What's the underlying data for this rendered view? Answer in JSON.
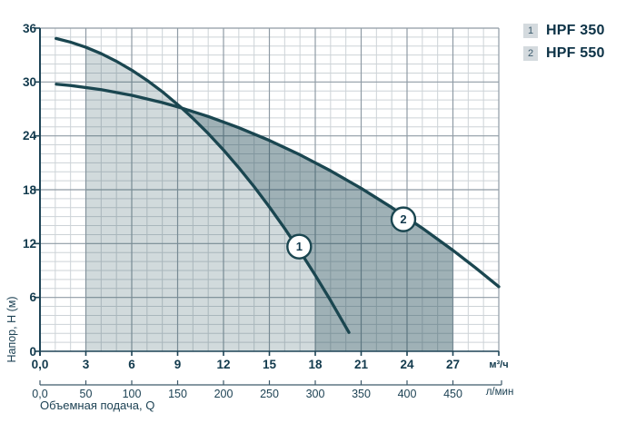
{
  "chart": {
    "y_axis": {
      "title": "Напор, Н (м)",
      "tick_values": [
        36,
        30,
        24,
        18,
        12,
        6,
        0
      ],
      "tick_labels": [
        "36",
        "30",
        "24",
        "18",
        "12",
        "6",
        "0"
      ],
      "min": 0,
      "max": 36
    },
    "x_axis_primary": {
      "unit": "м³/ч",
      "tick_values": [
        0,
        3,
        6,
        9,
        12,
        15,
        18,
        21,
        24,
        27
      ],
      "tick_labels": [
        "0,0",
        "3",
        "6",
        "9",
        "12",
        "15",
        "18",
        "21",
        "24",
        "27"
      ],
      "min": 0,
      "max": 30
    },
    "x_axis_secondary": {
      "unit": "л/мин",
      "tick_values": [
        0,
        3,
        6,
        9,
        12,
        15,
        18,
        21,
        24,
        27
      ],
      "tick_labels": [
        "0,0",
        "50",
        "100",
        "150",
        "200",
        "250",
        "300",
        "350",
        "400",
        "450"
      ],
      "title": "Объемная подача, Q"
    },
    "legend": {
      "items": [
        {
          "key": "1",
          "label": "HPF 350"
        },
        {
          "key": "2",
          "label": "HPF 550"
        }
      ]
    },
    "colors": {
      "curve": "#1a4650",
      "region_fill": "rgba(26,70,80,0.20)",
      "region_fill_dark": "rgba(26,70,80,0.42)",
      "grid_minor": "#cdd3d7",
      "grid_major": "#8f9ba5",
      "axis": "#1e4456",
      "ruler": "#3e5a6b",
      "text": "#123a4d",
      "marker_fill": "#ffffff"
    }
  },
  "chart_data": {
    "type": "line",
    "title": "",
    "xlabel": "Объемная подача, Q",
    "ylabel": "Напор, Н (м)",
    "x_unit": "м³/ч",
    "x_unit_secondary": "л/мин",
    "xlim": [
      0,
      30
    ],
    "ylim": [
      0,
      36
    ],
    "grid": "minor 1 м³/ч × 1 м, major 3 м³/ч × 6 м",
    "series": [
      {
        "name": "HPF 350",
        "curve_label": "1",
        "marker_at": [
          16.95,
          11.66
        ],
        "points": [
          [
            1.05,
            34.85
          ],
          [
            2,
            34.44
          ],
          [
            3,
            33.87
          ],
          [
            4,
            33.16
          ],
          [
            5,
            32.31
          ],
          [
            6,
            31.32
          ],
          [
            7,
            30.19
          ],
          [
            8,
            28.92
          ],
          [
            9.27,
            27.1
          ],
          [
            10,
            25.95
          ],
          [
            11,
            24.26
          ],
          [
            12,
            22.43
          ],
          [
            13,
            20.45
          ],
          [
            14,
            18.34
          ],
          [
            15,
            16.08
          ],
          [
            16,
            13.68
          ],
          [
            17,
            11.15
          ],
          [
            18,
            8.47
          ],
          [
            19,
            5.66
          ],
          [
            20.2,
            2.1
          ]
        ]
      },
      {
        "name": "HPF 550",
        "curve_label": "2",
        "marker_at": [
          23.76,
          14.7
        ],
        "points": [
          [
            1.07,
            29.76
          ],
          [
            2,
            29.61
          ],
          [
            4,
            29.15
          ],
          [
            6,
            28.52
          ],
          [
            8,
            27.71
          ],
          [
            9.27,
            27.1
          ],
          [
            11,
            26.16
          ],
          [
            13,
            24.91
          ],
          [
            15,
            23.49
          ],
          [
            17,
            21.89
          ],
          [
            19,
            20.11
          ],
          [
            21,
            18.16
          ],
          [
            23,
            16.02
          ],
          [
            25,
            13.72
          ],
          [
            27,
            11.25
          ],
          [
            28.5,
            9.27
          ],
          [
            30,
            7.2
          ]
        ]
      }
    ],
    "curves_intersection": [
      9.27,
      27.1
    ],
    "shaded_regions": [
      {
        "name": "HPF 350 operating range",
        "shade": "light",
        "x_from": 3,
        "x_to": 18,
        "polygon": [
          [
            3,
            0
          ],
          [
            3,
            33.87
          ],
          [
            4,
            33.16
          ],
          [
            5,
            32.31
          ],
          [
            6,
            31.32
          ],
          [
            7,
            30.19
          ],
          [
            8,
            28.92
          ],
          [
            9.27,
            27.1
          ],
          [
            10,
            25.95
          ],
          [
            11,
            24.26
          ],
          [
            12,
            22.43
          ],
          [
            13,
            20.45
          ],
          [
            14,
            18.34
          ],
          [
            15,
            16.08
          ],
          [
            16,
            13.68
          ],
          [
            17,
            11.15
          ],
          [
            18,
            8.47
          ],
          [
            18,
            0
          ]
        ]
      },
      {
        "name": "HPF 550 operating range",
        "shade": "dark",
        "x_from": 9.27,
        "x_to": 27,
        "polygon": [
          [
            9.27,
            27.1
          ],
          [
            11,
            26.16
          ],
          [
            13,
            24.91
          ],
          [
            15,
            23.49
          ],
          [
            17,
            21.89
          ],
          [
            19,
            20.11
          ],
          [
            21,
            18.16
          ],
          [
            23,
            16.02
          ],
          [
            25,
            13.72
          ],
          [
            27,
            11.25
          ],
          [
            27,
            0
          ],
          [
            18,
            0
          ],
          [
            18,
            8.47
          ],
          [
            17,
            11.15
          ],
          [
            16,
            13.68
          ],
          [
            15,
            16.08
          ],
          [
            14,
            18.34
          ],
          [
            13,
            20.45
          ],
          [
            12,
            22.43
          ],
          [
            11,
            24.26
          ],
          [
            10,
            25.95
          ]
        ]
      }
    ]
  }
}
